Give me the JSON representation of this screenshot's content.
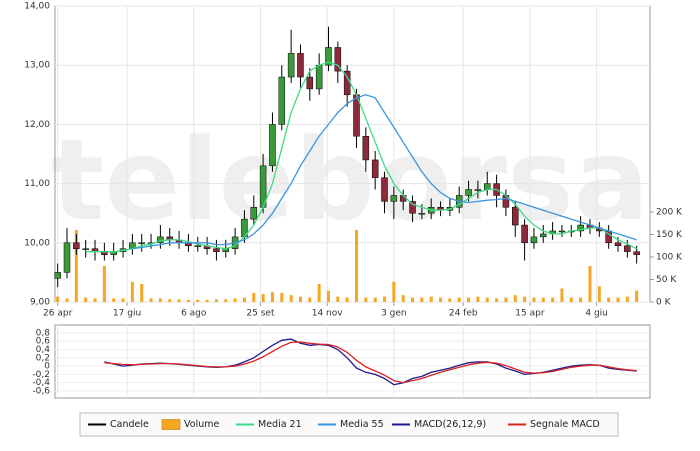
{
  "chart_data": [
    {
      "type": "candlestick",
      "watermark": "teleborsa",
      "candle_name": "Candele",
      "up_color": "#3a9a3a",
      "down_color": "#8c2a3c",
      "wick_color": "#000000",
      "x": [
        0,
        7,
        14,
        21,
        28,
        35,
        42,
        49,
        56,
        63,
        70,
        77,
        84,
        91,
        98,
        105,
        112,
        119,
        126,
        133,
        140,
        147,
        154,
        161,
        168,
        175,
        182,
        189,
        196,
        203,
        210,
        217,
        224,
        231,
        238,
        245,
        252,
        259,
        266,
        273,
        280,
        287,
        294,
        301,
        308,
        315,
        322,
        329,
        336,
        343,
        350,
        357,
        364,
        371,
        378,
        385,
        392,
        399,
        406,
        413,
        420,
        427,
        434
      ],
      "open": [
        9.4,
        9.5,
        10.0,
        9.9,
        9.9,
        9.85,
        9.8,
        9.85,
        9.9,
        10.0,
        10.0,
        10.0,
        10.1,
        10.05,
        10.0,
        9.95,
        9.95,
        9.9,
        9.85,
        9.9,
        10.1,
        10.4,
        10.6,
        11.3,
        12.0,
        12.8,
        13.2,
        12.8,
        12.6,
        13.0,
        13.3,
        12.9,
        12.5,
        11.8,
        11.4,
        11.1,
        10.7,
        10.8,
        10.7,
        10.5,
        10.5,
        10.6,
        10.55,
        10.6,
        10.8,
        10.9,
        10.9,
        11.0,
        10.8,
        10.6,
        10.3,
        10.0,
        10.1,
        10.15,
        10.2,
        10.2,
        10.2,
        10.3,
        10.25,
        10.2,
        10.0,
        9.95,
        9.85
      ],
      "high": [
        9.65,
        10.25,
        10.15,
        10.05,
        10.05,
        10.0,
        10.0,
        10.05,
        10.15,
        10.15,
        10.15,
        10.3,
        10.25,
        10.2,
        10.15,
        10.1,
        10.1,
        10.05,
        10.05,
        10.25,
        10.55,
        10.8,
        11.5,
        12.2,
        13.0,
        13.6,
        13.35,
        12.95,
        13.2,
        13.65,
        13.4,
        13.0,
        12.6,
        11.95,
        11.55,
        11.2,
        10.95,
        10.9,
        10.8,
        10.65,
        10.75,
        10.7,
        10.75,
        10.95,
        11.05,
        11.05,
        11.2,
        11.15,
        10.9,
        10.7,
        10.4,
        10.25,
        10.3,
        10.35,
        10.3,
        10.3,
        10.45,
        10.4,
        10.35,
        10.3,
        10.1,
        10.05,
        9.95
      ],
      "low": [
        9.25,
        9.4,
        9.8,
        9.75,
        9.7,
        9.7,
        9.7,
        9.75,
        9.8,
        9.85,
        9.9,
        9.9,
        9.95,
        9.9,
        9.85,
        9.85,
        9.8,
        9.7,
        9.75,
        9.8,
        10.0,
        10.3,
        10.5,
        11.2,
        11.9,
        12.7,
        12.6,
        12.4,
        12.5,
        12.9,
        12.7,
        12.3,
        11.6,
        11.2,
        10.9,
        10.5,
        10.4,
        10.55,
        10.35,
        10.4,
        10.4,
        10.45,
        10.45,
        10.5,
        10.7,
        10.75,
        10.8,
        10.6,
        10.45,
        10.1,
        9.7,
        9.9,
        10.0,
        10.05,
        10.1,
        10.1,
        10.1,
        10.15,
        10.1,
        9.9,
        9.85,
        9.75,
        9.65
      ],
      "close": [
        9.5,
        10.0,
        9.9,
        9.9,
        9.85,
        9.8,
        9.85,
        9.9,
        10.0,
        10.0,
        10.0,
        10.1,
        10.05,
        10.0,
        9.95,
        9.95,
        9.9,
        9.85,
        9.9,
        10.1,
        10.4,
        10.6,
        11.3,
        12.0,
        12.8,
        13.2,
        12.8,
        12.6,
        13.0,
        13.3,
        12.9,
        12.5,
        11.8,
        11.4,
        11.1,
        10.7,
        10.8,
        10.7,
        10.5,
        10.5,
        10.6,
        10.55,
        10.6,
        10.8,
        10.9,
        10.9,
        11.0,
        10.8,
        10.6,
        10.3,
        10.0,
        10.1,
        10.15,
        10.2,
        10.2,
        10.2,
        10.3,
        10.25,
        10.2,
        10.0,
        9.95,
        9.85,
        9.8
      ],
      "volume": {
        "name": "Volume",
        "color": "#f5a623",
        "axis": "y2",
        "values": [
          12,
          8,
          160,
          10,
          8,
          80,
          8,
          8,
          45,
          40,
          8,
          8,
          6,
          6,
          5,
          5,
          5,
          6,
          6,
          8,
          10,
          20,
          18,
          22,
          20,
          15,
          12,
          10,
          40,
          25,
          12,
          10,
          160,
          10,
          10,
          12,
          45,
          15,
          10,
          10,
          12,
          10,
          8,
          10,
          10,
          12,
          10,
          8,
          10,
          15,
          12,
          10,
          10,
          10,
          30,
          10,
          10,
          80,
          35,
          10,
          10,
          12,
          25
        ]
      },
      "series": [
        {
          "name": "Media 21",
          "color": "#3ddc84",
          "values": [
            null,
            null,
            null,
            9.85,
            9.85,
            9.85,
            9.85,
            9.87,
            9.9,
            9.95,
            9.98,
            10.03,
            10.05,
            10.05,
            10.02,
            9.98,
            9.95,
            9.92,
            9.9,
            9.95,
            10.1,
            10.3,
            10.6,
            11.0,
            11.6,
            12.2,
            12.6,
            12.9,
            13.0,
            13.05,
            13.0,
            12.8,
            12.5,
            12.1,
            11.7,
            11.3,
            11.0,
            10.8,
            10.65,
            10.6,
            10.55,
            10.55,
            10.57,
            10.65,
            10.75,
            10.85,
            10.9,
            10.9,
            10.8,
            10.65,
            10.45,
            10.3,
            10.2,
            10.15,
            10.15,
            10.2,
            10.22,
            10.25,
            10.25,
            10.15,
            10.05,
            9.98,
            9.9
          ]
        },
        {
          "name": "Media 55",
          "color": "#3a96dd",
          "values": [
            null,
            null,
            null,
            null,
            null,
            null,
            null,
            null,
            9.9,
            9.92,
            9.95,
            9.97,
            10.0,
            10.0,
            10.0,
            10.0,
            10.0,
            9.97,
            9.97,
            10.0,
            10.05,
            10.15,
            10.3,
            10.5,
            10.75,
            11.0,
            11.3,
            11.55,
            11.8,
            12.0,
            12.2,
            12.35,
            12.45,
            12.5,
            12.45,
            12.2,
            11.95,
            11.7,
            11.45,
            11.2,
            11.0,
            10.85,
            10.75,
            10.7,
            10.68,
            10.7,
            10.72,
            10.73,
            10.75,
            10.7,
            10.65,
            10.6,
            10.55,
            10.5,
            10.45,
            10.4,
            10.35,
            10.3,
            10.25,
            10.2,
            10.15,
            10.1,
            10.05
          ]
        }
      ],
      "xlim": [
        -2,
        444
      ],
      "xticks": [
        {
          "value": 0,
          "label": "26 apr"
        },
        {
          "value": 52,
          "label": "17 giu"
        },
        {
          "value": 102,
          "label": "6 ago"
        },
        {
          "value": 152,
          "label": "25 set"
        },
        {
          "value": 202,
          "label": "14 nov"
        },
        {
          "value": 252,
          "label": "3 gen"
        },
        {
          "value": 304,
          "label": "24 feb"
        },
        {
          "value": 354,
          "label": "15 apr"
        },
        {
          "value": 404,
          "label": "4 giu"
        }
      ],
      "ylim": [
        9,
        14
      ],
      "yticks": [
        {
          "value": 9,
          "label": "9,00"
        },
        {
          "value": 10,
          "label": "10,00"
        },
        {
          "value": 11,
          "label": "11,00"
        },
        {
          "value": 12,
          "label": "12,00"
        },
        {
          "value": 13,
          "label": "13,00"
        },
        {
          "value": 14,
          "label": "14,00"
        }
      ],
      "y2lim": [
        0,
        658
      ],
      "y2ticks": [
        {
          "value": 0,
          "label": "0 K"
        },
        {
          "value": 50,
          "label": "50 K"
        },
        {
          "value": 100,
          "label": "100 K"
        },
        {
          "value": 150,
          "label": "150 K"
        },
        {
          "value": 200,
          "label": "200 K"
        }
      ],
      "grid": true
    },
    {
      "type": "line",
      "series": [
        {
          "name": "MACD(26,12,9)",
          "color": "#1c1c8c",
          "values": [
            null,
            null,
            null,
            null,
            null,
            0.1,
            0.05,
            0.0,
            0.02,
            0.05,
            0.06,
            0.07,
            0.06,
            0.04,
            0.02,
            0.0,
            -0.02,
            -0.03,
            -0.02,
            0.02,
            0.1,
            0.2,
            0.35,
            0.5,
            0.62,
            0.65,
            0.55,
            0.5,
            0.52,
            0.5,
            0.4,
            0.2,
            -0.05,
            -0.15,
            -0.2,
            -0.3,
            -0.45,
            -0.4,
            -0.3,
            -0.25,
            -0.15,
            -0.1,
            -0.05,
            0.02,
            0.08,
            0.1,
            0.1,
            0.05,
            -0.05,
            -0.12,
            -0.2,
            -0.18,
            -0.15,
            -0.1,
            -0.05,
            0.0,
            0.02,
            0.03,
            0.02,
            -0.05,
            -0.08,
            -0.1,
            -0.12
          ]
        },
        {
          "name": "Segnale MACD",
          "color": "#dd2222",
          "values": [
            null,
            null,
            null,
            null,
            null,
            0.08,
            0.06,
            0.04,
            0.03,
            0.04,
            0.05,
            0.06,
            0.06,
            0.05,
            0.03,
            0.01,
            -0.01,
            -0.02,
            -0.02,
            0.0,
            0.05,
            0.12,
            0.22,
            0.35,
            0.48,
            0.57,
            0.58,
            0.55,
            0.53,
            0.52,
            0.46,
            0.33,
            0.14,
            -0.02,
            -0.12,
            -0.22,
            -0.35,
            -0.4,
            -0.35,
            -0.3,
            -0.22,
            -0.15,
            -0.09,
            -0.03,
            0.03,
            0.07,
            0.09,
            0.07,
            0.01,
            -0.07,
            -0.15,
            -0.17,
            -0.16,
            -0.13,
            -0.08,
            -0.03,
            0.0,
            0.02,
            0.02,
            -0.02,
            -0.06,
            -0.09,
            -0.11
          ]
        }
      ],
      "ylim": [
        -0.77,
        0.99
      ],
      "yticks": [
        {
          "value": -0.6,
          "label": "-0,6"
        },
        {
          "value": -0.4,
          "label": "-0,4"
        },
        {
          "value": -0.2,
          "label": "-0,2"
        },
        0,
        {
          "value": 0.2,
          "label": "0,2"
        },
        {
          "value": 0.4,
          "label": "0,4"
        },
        {
          "value": 0.6,
          "label": "0,6"
        },
        {
          "value": 0.8,
          "label": "0,8"
        }
      ],
      "grid": true
    }
  ]
}
